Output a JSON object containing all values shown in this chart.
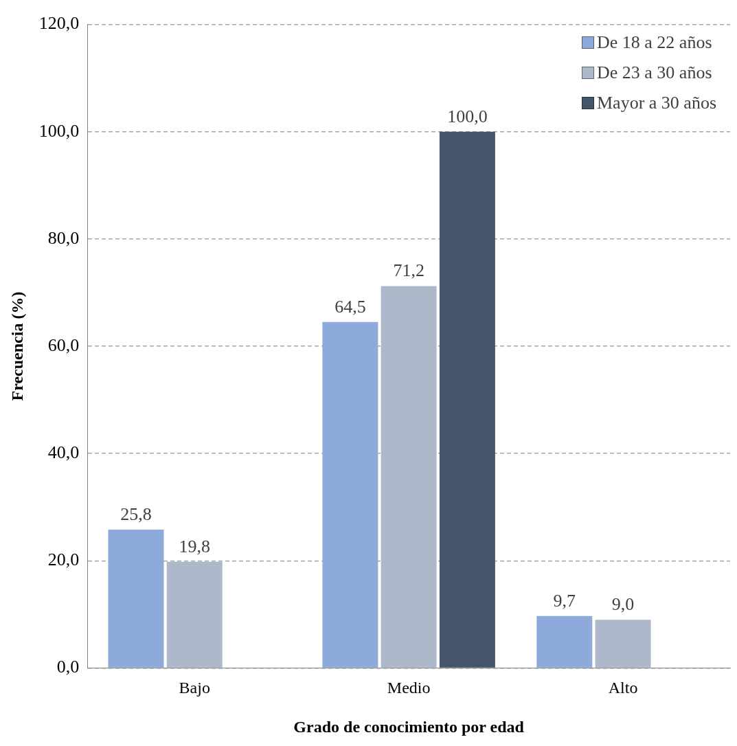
{
  "chart_data": {
    "type": "bar",
    "xlabel": "Grado de conocimiento por edad",
    "ylabel": "Frecuencia (%)",
    "categories": [
      "Bajo",
      "Medio",
      "Alto"
    ],
    "series": [
      {
        "name": "De 18 a 22 años",
        "color": "#8eaadb",
        "values": [
          25.8,
          64.5,
          9.7
        ],
        "value_labels": [
          "25,8",
          "64,5",
          "9,7"
        ]
      },
      {
        "name": "De 23 a 30 años",
        "color": "#adb9ca",
        "values": [
          19.8,
          71.2,
          9.0
        ],
        "value_labels": [
          "19,8",
          "71,2",
          "9,0"
        ]
      },
      {
        "name": "Mayor a 30 años",
        "color": "#44546a",
        "values": [
          null,
          100.0,
          null
        ],
        "value_labels": [
          null,
          "100,0",
          null
        ]
      }
    ],
    "ylim": [
      0,
      120
    ],
    "yticks": [
      {
        "value": 0,
        "label": "0,0"
      },
      {
        "value": 20,
        "label": "20,0"
      },
      {
        "value": 40,
        "label": "40,0"
      },
      {
        "value": 60,
        "label": "60,0"
      },
      {
        "value": 80,
        "label": "80,0"
      },
      {
        "value": 100,
        "label": "100,0"
      },
      {
        "value": 120,
        "label": "120,0"
      }
    ],
    "grid": "y",
    "legend": "top right"
  }
}
